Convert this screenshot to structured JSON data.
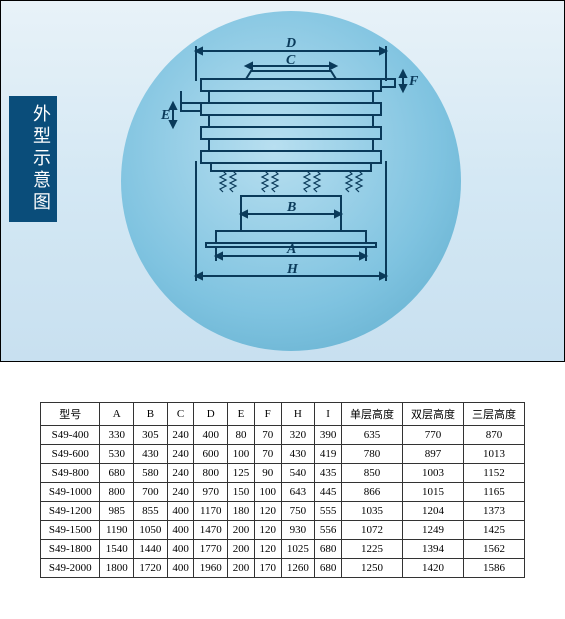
{
  "label_title": "外型示意图",
  "dim_labels": {
    "A": "A",
    "B": "B",
    "C": "C",
    "D": "D",
    "E": "E",
    "F": "F",
    "H": "H"
  },
  "diagram": {
    "stroke": "#0a3a5a",
    "stroke_width": 2,
    "circle_bg": "#7fc3e0",
    "label_bg": "#0a4d7a"
  },
  "table": {
    "columns": [
      "型号",
      "A",
      "B",
      "C",
      "D",
      "E",
      "F",
      "H",
      "I",
      "单层高度",
      "双层高度",
      "三层高度"
    ],
    "rows": [
      [
        "S49-400",
        "330",
        "305",
        "240",
        "400",
        "80",
        "70",
        "320",
        "390",
        "635",
        "770",
        "870"
      ],
      [
        "S49-600",
        "530",
        "430",
        "240",
        "600",
        "100",
        "70",
        "430",
        "419",
        "780",
        "897",
        "1013"
      ],
      [
        "S49-800",
        "680",
        "580",
        "240",
        "800",
        "125",
        "90",
        "540",
        "435",
        "850",
        "1003",
        "1152"
      ],
      [
        "S49-1000",
        "800",
        "700",
        "240",
        "970",
        "150",
        "100",
        "643",
        "445",
        "866",
        "1015",
        "1165"
      ],
      [
        "S49-1200",
        "985",
        "855",
        "400",
        "1170",
        "180",
        "120",
        "750",
        "555",
        "1035",
        "1204",
        "1373"
      ],
      [
        "S49-1500",
        "1190",
        "1050",
        "400",
        "1470",
        "200",
        "120",
        "930",
        "556",
        "1072",
        "1249",
        "1425"
      ],
      [
        "S49-1800",
        "1540",
        "1440",
        "400",
        "1770",
        "200",
        "120",
        "1025",
        "680",
        "1225",
        "1394",
        "1562"
      ],
      [
        "S49-2000",
        "1800",
        "1720",
        "400",
        "1960",
        "200",
        "170",
        "1260",
        "680",
        "1250",
        "1420",
        "1586"
      ]
    ]
  }
}
